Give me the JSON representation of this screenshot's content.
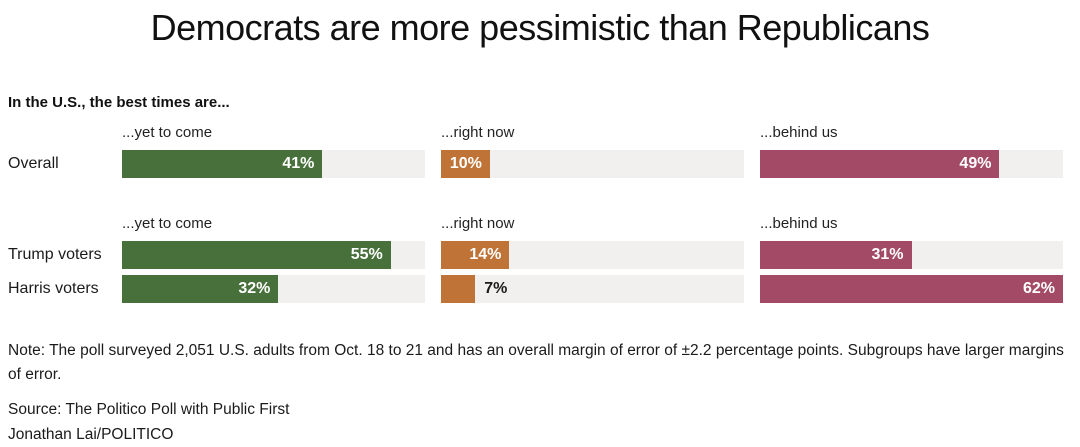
{
  "title": "Democrats are more pessimistic than Republicans",
  "subtitle": "In the U.S., the best times are...",
  "colors": {
    "green": "#47703a",
    "orange": "#bf7336",
    "maroon": "#a34a67",
    "track": "#f1f0ee",
    "text": "#1b1b1b"
  },
  "chart_data": {
    "type": "bar",
    "orientation": "horizontal",
    "scale_max": 62,
    "unit": "%",
    "columns": [
      "...yet to come",
      "...right now",
      "...behind us"
    ],
    "column_colors": [
      "#47703a",
      "#bf7336",
      "#a34a67"
    ],
    "track_color": "#f1f0ee",
    "groups": [
      {
        "rows": [
          {
            "label": "Overall",
            "values": [
              41,
              10,
              49
            ]
          }
        ]
      },
      {
        "rows": [
          {
            "label": "Trump voters",
            "values": [
              55,
              14,
              31
            ]
          },
          {
            "label": "Harris voters",
            "values": [
              32,
              7,
              62
            ]
          }
        ]
      }
    ]
  },
  "footer": {
    "note": "Note: The poll surveyed 2,051 U.S. adults from Oct. 18 to 21 and has an overall margin of error of ±2.2 percentage points. Subgroups have larger margins of error.",
    "source": "Source: The Politico Poll with Public First",
    "credit": "Jonathan Lai/POLITICO"
  }
}
